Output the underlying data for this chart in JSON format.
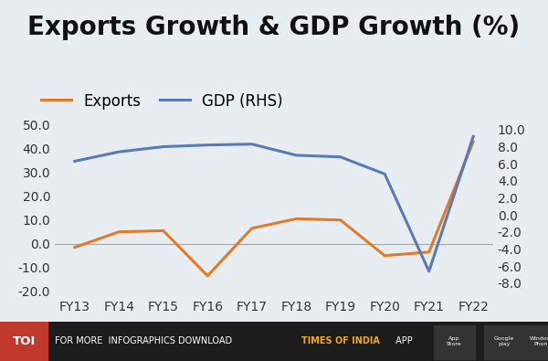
{
  "title": "Exports Growth & GDP Growth (%)",
  "title_fontsize": 20,
  "background_color": "#e8edf2",
  "categories": [
    "FY13",
    "FY14",
    "FY15",
    "FY16",
    "FY17",
    "FY18",
    "FY19",
    "FY20",
    "FY21",
    "FY22"
  ],
  "exports": [
    -1.5,
    5.0,
    5.5,
    -13.5,
    6.5,
    10.5,
    10.0,
    -5.0,
    -3.5,
    43.0
  ],
  "gdp": [
    6.3,
    7.4,
    8.0,
    8.2,
    8.3,
    7.0,
    6.8,
    4.8,
    -6.6,
    9.2
  ],
  "exports_color": "#e07b2a",
  "gdp_color": "#5a7ab5",
  "lhs_ylim": [
    -22,
    57
  ],
  "lhs_yticks": [
    -20.0,
    -10.0,
    0.0,
    10.0,
    20.0,
    30.0,
    40.0,
    50.0
  ],
  "rhs_ylim": [
    -9.5,
    12.5
  ],
  "rhs_yticks": [
    -8.0,
    -6.0,
    -4.0,
    -2.0,
    0.0,
    2.0,
    4.0,
    6.0,
    8.0,
    10.0
  ],
  "line_width": 2.2,
  "legend_fontsize": 12,
  "tick_fontsize": 10,
  "footer_bg": "#1c1c1c",
  "footer_toi_bg": "#c0392b"
}
